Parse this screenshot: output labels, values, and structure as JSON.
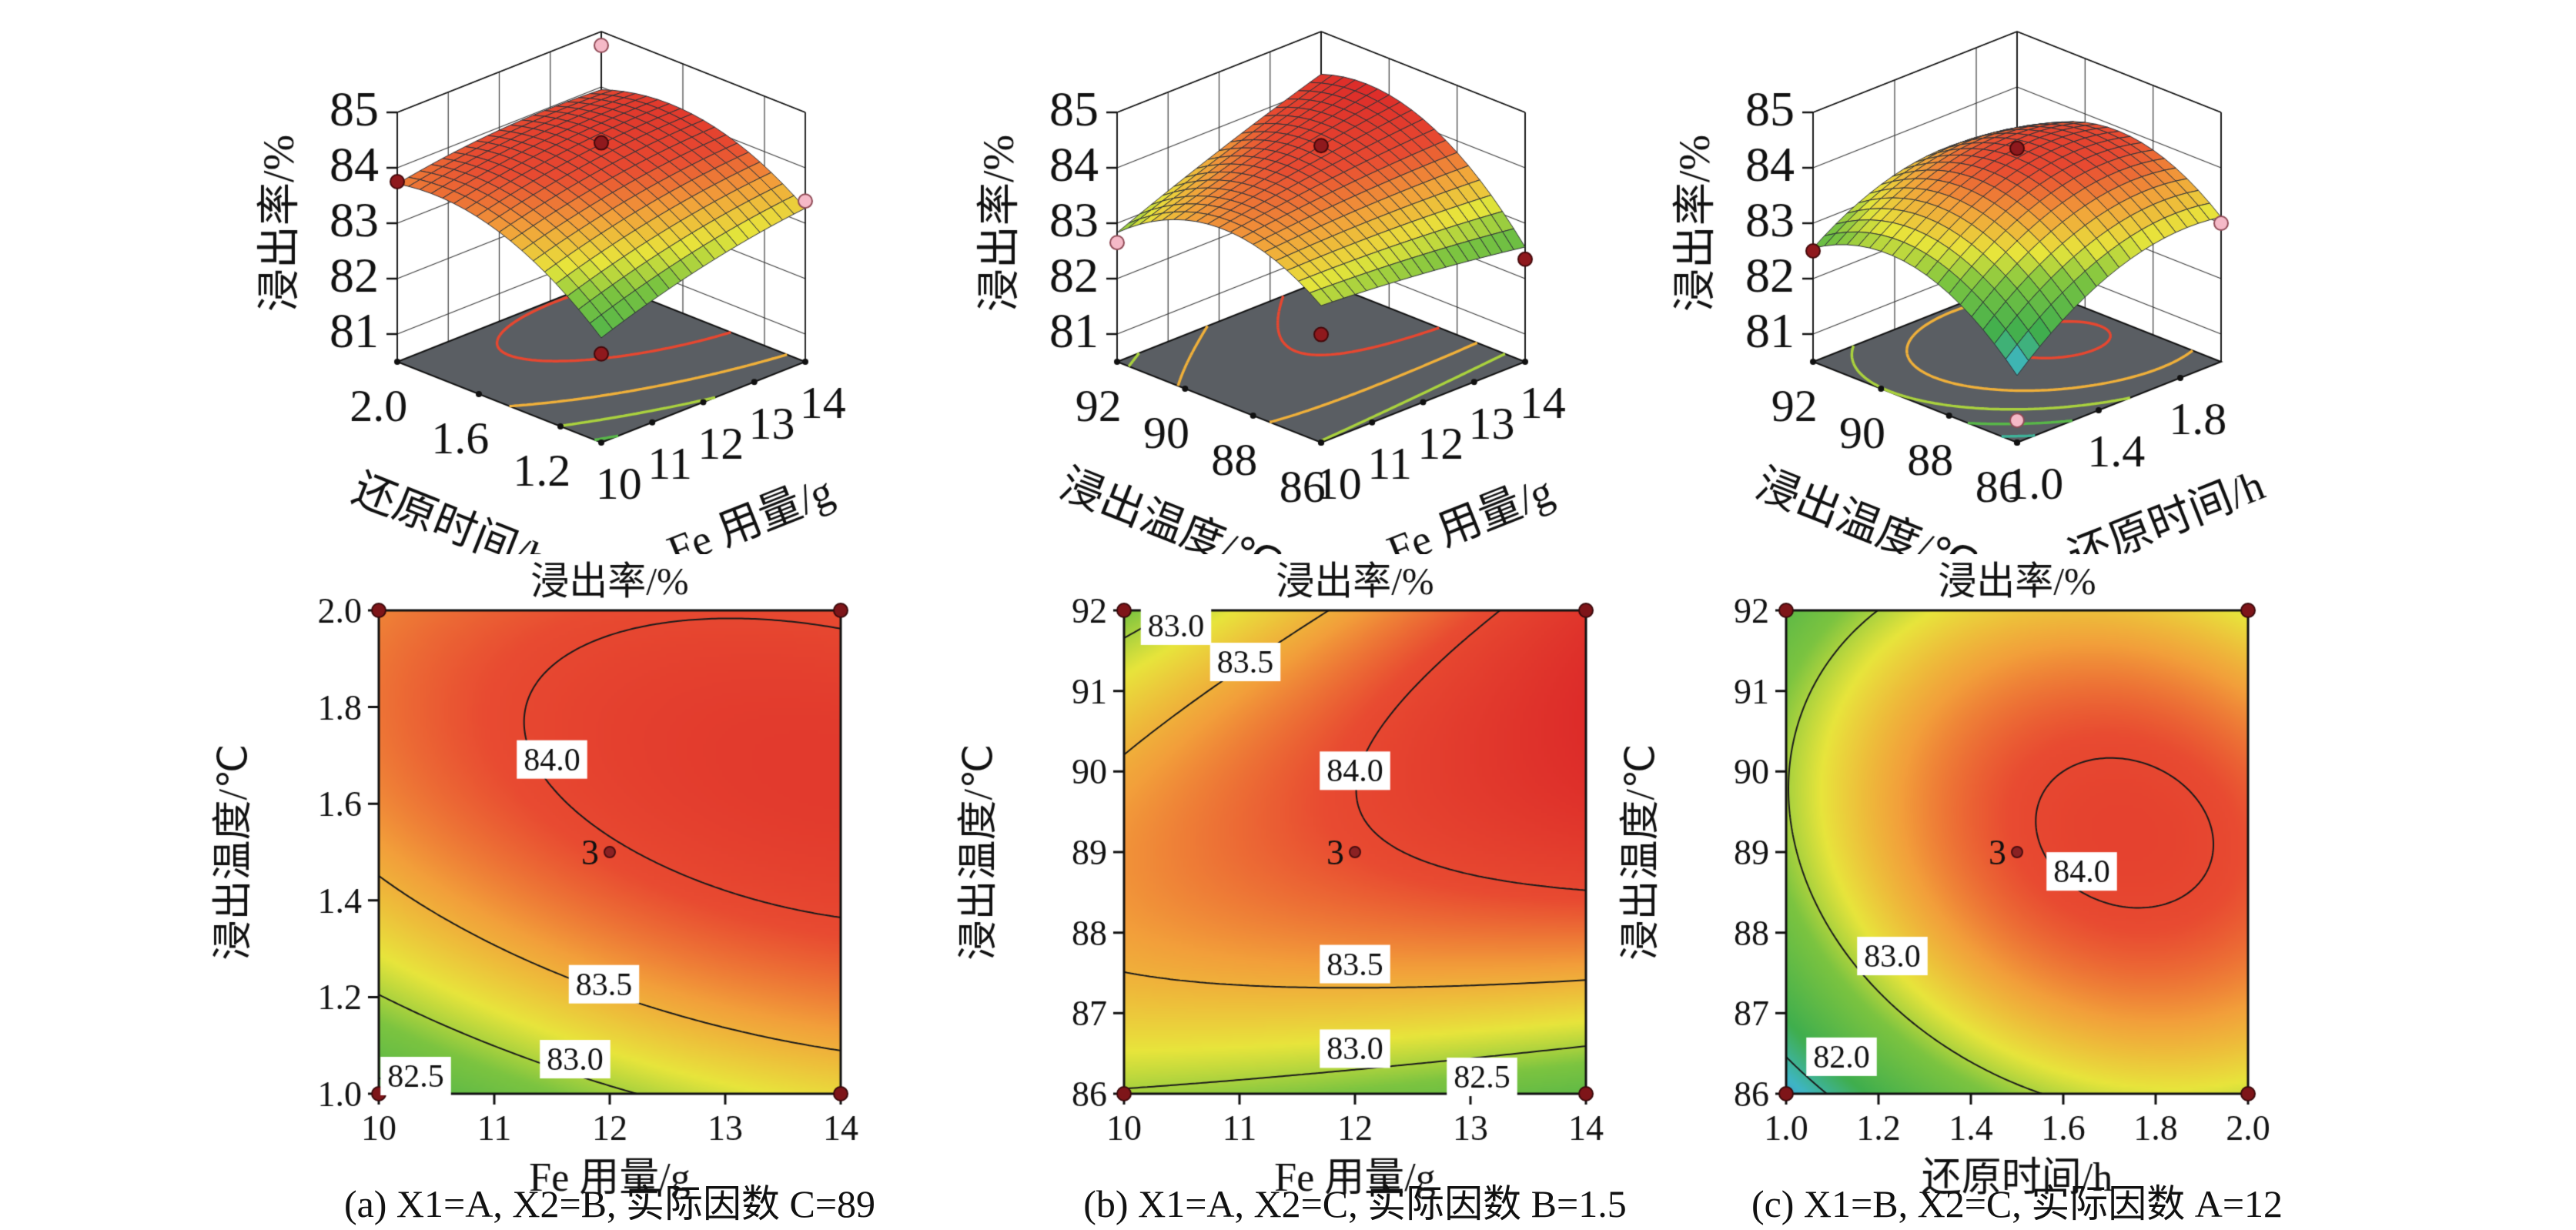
{
  "figure": {
    "description": "响应面法优化浸出率图 (3D response surfaces and 2D contour plots of leaching rate)",
    "background": "#ffffff"
  },
  "style": {
    "colormap": [
      [
        81.3,
        "#3b5fc0"
      ],
      [
        81.85,
        "#3eb6c6"
      ],
      [
        82.25,
        "#3fae4e"
      ],
      [
        82.85,
        "#7cc440"
      ],
      [
        83.2,
        "#e8e53b"
      ],
      [
        83.6,
        "#f29f3a"
      ],
      [
        83.95,
        "#e84b31"
      ],
      [
        84.55,
        "#d81f26"
      ]
    ],
    "floor_color": "#5a5e63",
    "contour_line_color": "#1a1a1a",
    "design_point_colors": {
      "dark": "#8f191d",
      "pink": "#f5b9c7"
    }
  },
  "chart_data": [
    {
      "id": "surface-a",
      "type": "surface3d",
      "zlabel": "浸出率/%",
      "xlabel": "Fe 用量/g",
      "ylabel": "还原时间/h",
      "x_range": [
        10,
        14
      ],
      "x_ticks": [
        "10",
        "11",
        "12",
        "13",
        "14"
      ],
      "y_range": [
        1.0,
        2.0
      ],
      "y_ticks": [
        "2.0",
        "1.6",
        "1.2"
      ],
      "z_range": [
        81,
        85
      ],
      "z_ticks": [
        "85",
        "84",
        "83",
        "82",
        "81"
      ],
      "model": {
        "b0": 83.97,
        "b1": 0.28,
        "b2": 0.5,
        "b11": -0.12,
        "b22": -0.52,
        "b12": -0.16
      },
      "floor_levels": [
        82.5,
        83.0,
        83.5,
        84.0
      ],
      "design_points": [
        {
          "x": 10,
          "y": 2.0,
          "z": 83.75,
          "color": "dark"
        },
        {
          "x": 14,
          "y": 2.0,
          "z": 84.75,
          "color": "pink"
        },
        {
          "x": 12,
          "y": 1.5,
          "z": 84.45,
          "color": "dark"
        },
        {
          "x": 10,
          "y": 1.0,
          "z": 82.1,
          "color": "dark"
        },
        {
          "x": 14,
          "y": 1.0,
          "z": 83.4,
          "color": "pink"
        }
      ]
    },
    {
      "id": "surface-b",
      "type": "surface3d",
      "zlabel": "浸出率/%",
      "xlabel": "Fe 用量/g",
      "ylabel": "浸出温度/℃",
      "x_range": [
        10,
        14
      ],
      "x_ticks": [
        "10",
        "11",
        "12",
        "13",
        "14"
      ],
      "y_range": [
        86,
        92
      ],
      "y_ticks": [
        "92",
        "90",
        "88",
        "86"
      ],
      "z_range": [
        81,
        85
      ],
      "z_ticks": [
        "85",
        "84",
        "83",
        "82",
        "81"
      ],
      "model": {
        "b0": 83.95,
        "b1": 0.25,
        "b2": 0.38,
        "b11": -0.05,
        "b22": -0.75,
        "b12": 0.45
      },
      "floor_levels": [
        82.5,
        83.0,
        83.5,
        84.0
      ],
      "design_points": [
        {
          "x": 10,
          "y": 92,
          "z": 82.65,
          "color": "pink"
        },
        {
          "x": 12,
          "y": 89,
          "z": 84.4,
          "color": "dark"
        },
        {
          "x": 10,
          "y": 86,
          "z": 82.45,
          "color": "dark"
        },
        {
          "x": 14,
          "y": 86,
          "z": 82.35,
          "color": "dark"
        }
      ]
    },
    {
      "id": "surface-c",
      "type": "surface3d",
      "zlabel": "浸出率/%",
      "xlabel": "还原时间/h",
      "ylabel": "浸出温度/℃",
      "x_range": [
        1.0,
        2.0
      ],
      "x_ticks": [
        "1.0",
        "1.4",
        "1.8"
      ],
      "y_range": [
        86,
        92
      ],
      "y_ticks": [
        "92",
        "90",
        "88",
        "86"
      ],
      "z_range": [
        81,
        85
      ],
      "z_ticks": [
        "85",
        "84",
        "83",
        "82",
        "81"
      ],
      "model": {
        "b0": 83.95,
        "b1": 0.5,
        "b2": 0.22,
        "b11": -0.52,
        "b22": -0.8,
        "b12": -0.2
      },
      "floor_levels": [
        82.0,
        82.5,
        83.0,
        83.5,
        84.0
      ],
      "design_points": [
        {
          "x": 1.0,
          "y": 92,
          "z": 82.5,
          "color": "dark"
        },
        {
          "x": 1.5,
          "y": 89,
          "z": 84.35,
          "color": "dark"
        },
        {
          "x": 2.0,
          "y": 86,
          "z": 83.0,
          "color": "pink"
        },
        {
          "x": 1.0,
          "y": 86,
          "z": 80.9,
          "color": "pink"
        }
      ]
    },
    {
      "id": "contour-a",
      "type": "contour",
      "title": "浸出率/%",
      "xlabel": "Fe 用量/g",
      "ylabel": "浸出温度/℃",
      "caption": "(a) X1=A, X2=B, 实际因数 C=89",
      "x_range": [
        10,
        14
      ],
      "x_ticks": [
        "10",
        "11",
        "12",
        "13",
        "14"
      ],
      "y_range": [
        1.0,
        2.0
      ],
      "y_ticks": [
        "2.0",
        "1.8",
        "1.6",
        "1.4",
        "1.2",
        "1.0"
      ],
      "model": {
        "b0": 83.97,
        "b1": 0.28,
        "b2": 0.5,
        "b11": -0.12,
        "b22": -0.52,
        "b12": -0.16
      },
      "levels": [
        82.5,
        83.0,
        83.5,
        84.0
      ],
      "contour_labels": [
        {
          "text": "84.0",
          "x": 11.5,
          "y": 1.69
        },
        {
          "text": "83.5",
          "x": 11.95,
          "y": 1.225
        },
        {
          "text": "83.0",
          "x": 11.7,
          "y": 1.07
        },
        {
          "text": "82.5",
          "x": 10.32,
          "y": 1.035
        }
      ],
      "center_point": {
        "label": "3",
        "x": 12,
        "y": 1.5
      }
    },
    {
      "id": "contour-b",
      "type": "contour",
      "title": "浸出率/%",
      "xlabel": "Fe 用量/g",
      "ylabel": "浸出温度/℃",
      "caption": "(b) X1=A, X2=C, 实际因数 B=1.5",
      "x_range": [
        10,
        14
      ],
      "x_ticks": [
        "10",
        "11",
        "12",
        "13",
        "14"
      ],
      "y_range": [
        86,
        92
      ],
      "y_ticks": [
        "92",
        "91",
        "90",
        "89",
        "88",
        "87",
        "86"
      ],
      "model": {
        "b0": 83.95,
        "b1": 0.25,
        "b2": 0.38,
        "b11": -0.05,
        "b22": -0.75,
        "b12": 0.45
      },
      "levels": [
        82.5,
        83.0,
        83.5,
        84.0
      ],
      "contour_labels": [
        {
          "text": "83.0",
          "x": 10.45,
          "y": 91.8
        },
        {
          "text": "83.5",
          "x": 11.05,
          "y": 91.35
        },
        {
          "text": "84.0",
          "x": 12.0,
          "y": 90.0
        },
        {
          "text": "83.5",
          "x": 12.0,
          "y": 87.6
        },
        {
          "text": "83.0",
          "x": 12.0,
          "y": 86.55
        },
        {
          "text": "82.5",
          "x": 13.1,
          "y": 86.2
        }
      ],
      "center_point": {
        "label": "3",
        "x": 12,
        "y": 89
      }
    },
    {
      "id": "contour-c",
      "type": "contour",
      "title": "浸出率/%",
      "xlabel": "还原时间/h",
      "ylabel": "浸出温度/℃",
      "caption": "(c) X1=B, X2=C, 实际因数 A=12",
      "x_range": [
        1.0,
        2.0
      ],
      "x_ticks": [
        "1.0",
        "1.2",
        "1.4",
        "1.6",
        "1.8",
        "2.0"
      ],
      "y_range": [
        86,
        92
      ],
      "y_ticks": [
        "92",
        "91",
        "90",
        "89",
        "88",
        "87",
        "86"
      ],
      "model": {
        "b0": 83.95,
        "b1": 0.5,
        "b2": 0.22,
        "b11": -0.52,
        "b22": -0.8,
        "b12": -0.2
      },
      "levels": [
        82.0,
        83.0,
        84.0
      ],
      "contour_labels": [
        {
          "text": "84.0",
          "x": 1.64,
          "y": 88.75
        },
        {
          "text": "83.0",
          "x": 1.23,
          "y": 87.7
        },
        {
          "text": "82.0",
          "x": 1.12,
          "y": 86.45
        }
      ],
      "center_point": {
        "label": "3",
        "x": 1.5,
        "y": 89
      }
    }
  ]
}
